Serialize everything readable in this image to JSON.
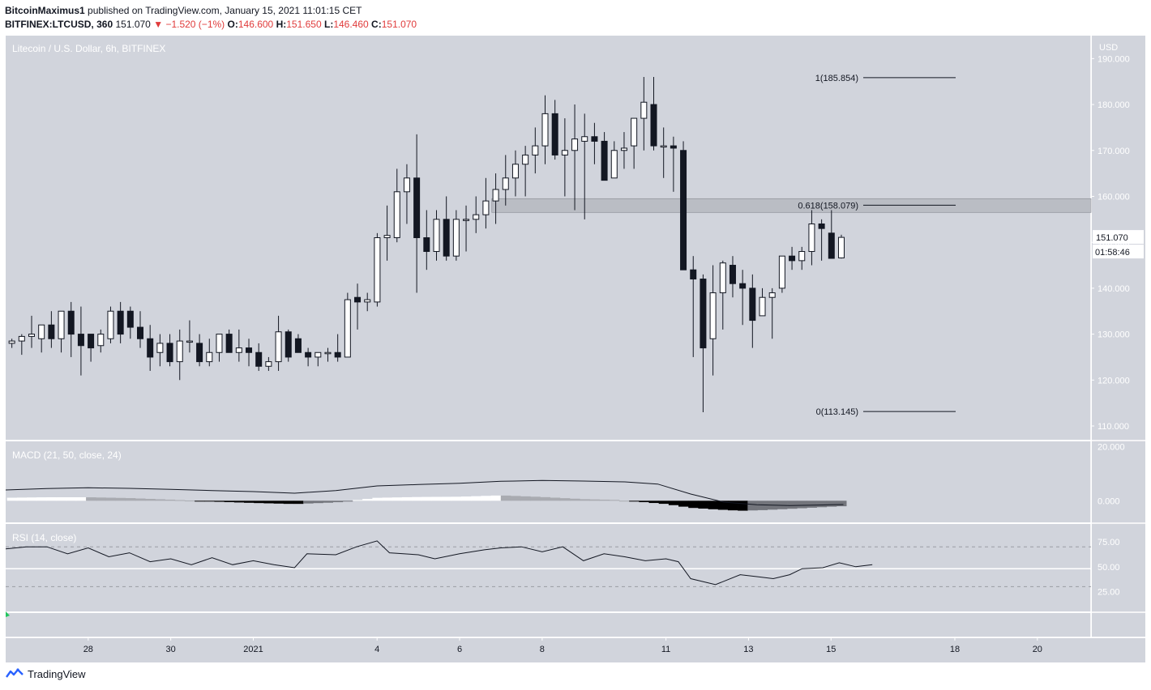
{
  "header": {
    "author": "BitcoinMaximus1",
    "published": "published on TradingView.com, January 15, 2021 11:01:15 CET",
    "symbol": "BITFINEX:LTCUSD, 360",
    "last": "151.070",
    "change": "−1.520 (−1%)",
    "o_label": "O:",
    "o_val": "146.600",
    "h_label": "H:",
    "h_val": "151.650",
    "l_label": "L:",
    "l_val": "146.460",
    "c_label": "C:",
    "c_val": "151.070"
  },
  "footer": {
    "brand": "TradingView"
  },
  "chart_data": {
    "type": "candlestick",
    "title": "Litecoin / U.S. Dollar, 6h, BITFINEX",
    "currency_label": "USD",
    "price_ticks": [
      "190.000",
      "180.000",
      "170.000",
      "160.000",
      "150.000",
      "140.000",
      "130.000",
      "120.000",
      "110.000"
    ],
    "price_ylim": [
      107,
      195
    ],
    "x_ticks": [
      {
        "label": "28",
        "day": 28
      },
      {
        "label": "30",
        "day": 30
      },
      {
        "label": "2021",
        "day": 32
      },
      {
        "label": "4",
        "day": 35
      },
      {
        "label": "6",
        "day": 37
      },
      {
        "label": "8",
        "day": 39
      },
      {
        "label": "11",
        "day": 42
      },
      {
        "label": "13",
        "day": 44
      },
      {
        "label": "15",
        "day": 46
      },
      {
        "label": "18",
        "day": 49
      },
      {
        "label": "20",
        "day": 51
      }
    ],
    "xlim_days": [
      26,
      52.3
    ],
    "candles_ohlc": [
      [
        128,
        129,
        127,
        128.5
      ],
      [
        128.5,
        130,
        125.5,
        129.5
      ],
      [
        129.5,
        134,
        127,
        130
      ],
      [
        129,
        132,
        126,
        132
      ],
      [
        132,
        135,
        127,
        129
      ],
      [
        129,
        135,
        126,
        135
      ],
      [
        135,
        137,
        125,
        130
      ],
      [
        130,
        136,
        121,
        127.5
      ],
      [
        130,
        130,
        124,
        127
      ],
      [
        127.5,
        131,
        126,
        130
      ],
      [
        129,
        136,
        128,
        135
      ],
      [
        135,
        137,
        128,
        130
      ],
      [
        135,
        136,
        129,
        131.5
      ],
      [
        131.5,
        135,
        127,
        129
      ],
      [
        129,
        132,
        122,
        125
      ],
      [
        126,
        130,
        123,
        128
      ],
      [
        128,
        130,
        123,
        124
      ],
      [
        124,
        131,
        120,
        128.5
      ],
      [
        128.5,
        133,
        126,
        128.5
      ],
      [
        128,
        130,
        123,
        124
      ],
      [
        124,
        129,
        123,
        126
      ],
      [
        126,
        130,
        124,
        130
      ],
      [
        130,
        131,
        126,
        126
      ],
      [
        126,
        131,
        124,
        127
      ],
      [
        127,
        129,
        123,
        126
      ],
      [
        126,
        128,
        122,
        123
      ],
      [
        123,
        125,
        122,
        124
      ],
      [
        124,
        134,
        122,
        130.5
      ],
      [
        130.5,
        131,
        124,
        125
      ],
      [
        129,
        130,
        126,
        126
      ],
      [
        126,
        127,
        123,
        125
      ],
      [
        125,
        126,
        123,
        126
      ],
      [
        126,
        127,
        124,
        126
      ],
      [
        126,
        130,
        124,
        125
      ],
      [
        125,
        139,
        125,
        137.5
      ],
      [
        138,
        141,
        131,
        137
      ],
      [
        137,
        139,
        135,
        137.5
      ],
      [
        137,
        152,
        136,
        151
      ],
      [
        151,
        158,
        146,
        151.5
      ],
      [
        151,
        166,
        150,
        161
      ],
      [
        161,
        167,
        154,
        164
      ],
      [
        164,
        173.5,
        139,
        151
      ],
      [
        151,
        157,
        144,
        148
      ],
      [
        148,
        157,
        146,
        155
      ],
      [
        155,
        160,
        146,
        147
      ],
      [
        147,
        157,
        146,
        155
      ],
      [
        155,
        158,
        148,
        155
      ],
      [
        155,
        160,
        152,
        156
      ],
      [
        156,
        164,
        153,
        159
      ],
      [
        159,
        165,
        154,
        161.5
      ],
      [
        161.5,
        169,
        158,
        164
      ],
      [
        164,
        170,
        160,
        167
      ],
      [
        167,
        171,
        160,
        169
      ],
      [
        169,
        175,
        165,
        171
      ],
      [
        171,
        182,
        167,
        178
      ],
      [
        178,
        181,
        168,
        169
      ],
      [
        169,
        177,
        160,
        170
      ],
      [
        170,
        180,
        157,
        172.5
      ],
      [
        172,
        178,
        155,
        173
      ],
      [
        173,
        176,
        167,
        172
      ],
      [
        172,
        174,
        164,
        163.5
      ],
      [
        164,
        172,
        164,
        170
      ],
      [
        170,
        174,
        166,
        170.5
      ],
      [
        171,
        177,
        166,
        177
      ],
      [
        177,
        186,
        170,
        180.5
      ],
      [
        180,
        186,
        170,
        171
      ],
      [
        171,
        175,
        164,
        171
      ],
      [
        171,
        173,
        161,
        170.5
      ],
      [
        170,
        172,
        162,
        144
      ],
      [
        144,
        147,
        125,
        142
      ],
      [
        142,
        143,
        113,
        127
      ],
      [
        129,
        145,
        121,
        139
      ],
      [
        139,
        146,
        131,
        145.5
      ],
      [
        145,
        147,
        138,
        141
      ],
      [
        141,
        144,
        132,
        140
      ],
      [
        140,
        143,
        127,
        133
      ],
      [
        134,
        140,
        134,
        138
      ],
      [
        138,
        140,
        129,
        139
      ],
      [
        140,
        147,
        139,
        147
      ],
      [
        147,
        149,
        144,
        146
      ],
      [
        146,
        149,
        144,
        148
      ],
      [
        148,
        157,
        145,
        154
      ],
      [
        154,
        155,
        146,
        153
      ],
      [
        152,
        157,
        147,
        146.5
      ],
      [
        146.6,
        151.65,
        146.46,
        151.07
      ]
    ],
    "fib_levels": [
      {
        "label": "1(185.854)",
        "value": 185.854
      },
      {
        "label": "0.618(158.079)",
        "value": 158.079
      },
      {
        "label": "0(113.145)",
        "value": 113.145
      }
    ],
    "zone": {
      "from": 156.5,
      "to": 159.5
    },
    "last_price_label": "151.070",
    "countdown_label": "01:58:46",
    "macd": {
      "label": "MACD (21, 50, close, 24)",
      "ticks": [
        "20.000",
        "0.000"
      ],
      "ylim": [
        -8,
        22
      ],
      "line": [
        [
          26,
          4
        ],
        [
          27,
          4.5
        ],
        [
          28,
          4.8
        ],
        [
          29,
          4.6
        ],
        [
          30,
          4.2
        ],
        [
          31,
          3.8
        ],
        [
          32,
          3.4
        ],
        [
          33,
          2.8
        ],
        [
          34,
          3.8
        ],
        [
          35,
          5.5
        ],
        [
          36,
          6
        ],
        [
          37,
          6.5
        ],
        [
          38,
          7.2
        ],
        [
          39,
          7.5
        ],
        [
          40,
          7.3
        ],
        [
          41,
          7
        ],
        [
          41.8,
          6.2
        ],
        [
          42.6,
          2.5
        ],
        [
          43.4,
          -0.5
        ],
        [
          44.2,
          -1.5
        ],
        [
          45,
          -1.8
        ],
        [
          46,
          -1.5
        ],
        [
          46.3,
          -1.4
        ]
      ],
      "hist": [
        [
          26,
          1.1
        ],
        [
          27,
          1.3
        ],
        [
          28,
          1.3
        ],
        [
          29,
          1
        ],
        [
          30,
          0.4
        ],
        [
          31,
          -0.3
        ],
        [
          32,
          -0.8
        ],
        [
          33,
          -1.2
        ],
        [
          34,
          -0.6
        ],
        [
          35,
          1.1
        ],
        [
          36,
          1.4
        ],
        [
          37,
          1.5
        ],
        [
          38,
          2
        ],
        [
          39,
          1.4
        ],
        [
          40,
          0.6
        ],
        [
          40.8,
          0.3
        ],
        [
          41,
          0
        ],
        [
          41.3,
          -0.3
        ],
        [
          42,
          -1.2
        ],
        [
          42.6,
          -2.6
        ],
        [
          43.2,
          -3.2
        ],
        [
          43.8,
          -3.7
        ],
        [
          44.3,
          -3.5
        ],
        [
          45,
          -3
        ],
        [
          46,
          -2.2
        ],
        [
          46.3,
          -2
        ]
      ]
    },
    "rsi": {
      "label": "RSI (14, close)",
      "ticks": [
        "75.00",
        "50.00",
        "25.00"
      ],
      "ylim": [
        5,
        93
      ],
      "line": [
        [
          26,
          68
        ],
        [
          26.5,
          70
        ],
        [
          27,
          70
        ],
        [
          27.5,
          63
        ],
        [
          28,
          69
        ],
        [
          28.5,
          60
        ],
        [
          29,
          64
        ],
        [
          29.5,
          55
        ],
        [
          30,
          58
        ],
        [
          30.5,
          52
        ],
        [
          31,
          59
        ],
        [
          31.5,
          52
        ],
        [
          32,
          56
        ],
        [
          32.5,
          52
        ],
        [
          33,
          49
        ],
        [
          33.3,
          63
        ],
        [
          34,
          62
        ],
        [
          34.5,
          70
        ],
        [
          35,
          76
        ],
        [
          35.3,
          64
        ],
        [
          36,
          62
        ],
        [
          36.4,
          58
        ],
        [
          37,
          63
        ],
        [
          37.6,
          67
        ],
        [
          38,
          69
        ],
        [
          38.5,
          70
        ],
        [
          39,
          65
        ],
        [
          39.5,
          70
        ],
        [
          40,
          56
        ],
        [
          40.5,
          63
        ],
        [
          41,
          60
        ],
        [
          41.5,
          56
        ],
        [
          42,
          58
        ],
        [
          42.3,
          55
        ],
        [
          42.6,
          38
        ],
        [
          43.2,
          32
        ],
        [
          43.8,
          42
        ],
        [
          44.2,
          40
        ],
        [
          44.6,
          38
        ],
        [
          45,
          42
        ],
        [
          45.3,
          48
        ],
        [
          45.8,
          49
        ],
        [
          46.2,
          54
        ],
        [
          46.6,
          50
        ],
        [
          47,
          52
        ]
      ]
    }
  }
}
